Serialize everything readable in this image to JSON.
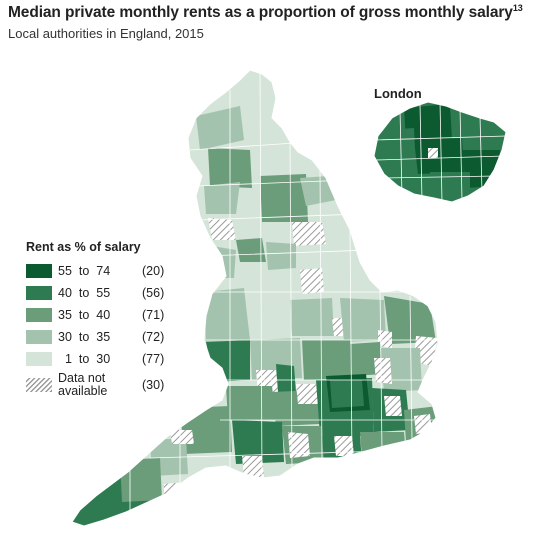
{
  "title": "Median private monthly rents as a proportion of gross monthly salary",
  "footnote": "13",
  "subtitle": "Local authorities in England, 2015",
  "inset_label": "London",
  "legend": {
    "title": "Rent as % of salary",
    "items": [
      {
        "low": "55",
        "sep": "to",
        "high": "74",
        "count": "(20)",
        "color": "#0b5a30"
      },
      {
        "low": "40",
        "sep": "to",
        "high": "55",
        "count": "(56)",
        "color": "#2e7b52"
      },
      {
        "low": "35",
        "sep": "to",
        "high": "40",
        "count": "(71)",
        "color": "#6b9d7b"
      },
      {
        "low": "30",
        "sep": "to",
        "high": "35",
        "count": "(72)",
        "color": "#a4c3ae"
      },
      {
        "low": "1",
        "sep": "to",
        "high": "30",
        "count": "(77)",
        "color": "#d4e4d8"
      }
    ],
    "na": {
      "label": "Data not available",
      "count": "(30)"
    }
  },
  "colors": {
    "c55_74": "#0b5a30",
    "c40_55": "#2e7b52",
    "c35_40": "#6b9d7b",
    "c30_35": "#a4c3ae",
    "c1_30": "#d4e4d8",
    "na_hatch": "#9a9a9a",
    "borders": "#ffffff"
  }
}
